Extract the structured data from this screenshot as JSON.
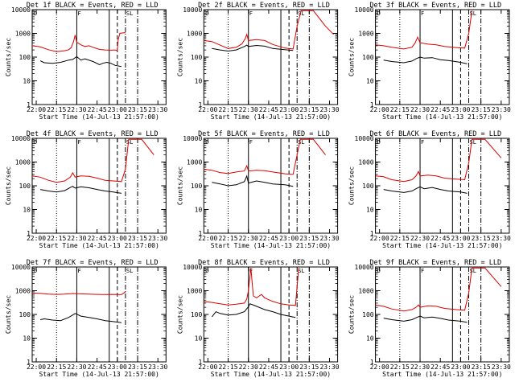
{
  "chart_data": {
    "type": "line",
    "y_scale": "log",
    "ylim": [
      1,
      10000
    ],
    "y_ticks": [
      1,
      10,
      100,
      1000,
      10000
    ],
    "y_tick_labels": [
      "1",
      "10",
      "100",
      "1000",
      "10000"
    ],
    "x_ticks": [
      "22:00",
      "22:15",
      "22:30",
      "22:45",
      "23:00",
      "23:15",
      "23:30"
    ],
    "xlabel": "Start Time (14-Jul-13 21:57:00)",
    "ylabel": "Counts/sec",
    "markers": [
      "D",
      "F",
      "SL"
    ],
    "series_colors": {
      "events": "#000000",
      "lld": "#dd0000"
    },
    "panels": [
      {
        "title": "Det 1f BLACK = Events, RED = LLD",
        "events": [
          [
            22.05,
            70
          ],
          [
            22.1,
            58
          ],
          [
            22.2,
            55
          ],
          [
            22.3,
            60
          ],
          [
            22.4,
            75
          ],
          [
            22.45,
            80
          ],
          [
            22.5,
            105
          ],
          [
            22.55,
            75
          ],
          [
            22.6,
            85
          ],
          [
            22.7,
            65
          ],
          [
            22.78,
            48
          ],
          [
            22.82,
            55
          ],
          [
            22.87,
            60
          ],
          [
            22.92,
            55
          ],
          [
            22.97,
            45
          ],
          [
            23.05,
            40
          ]
        ],
        "lld": [
          [
            21.95,
            300
          ],
          [
            22.05,
            270
          ],
          [
            22.15,
            205
          ],
          [
            22.25,
            170
          ],
          [
            22.35,
            185
          ],
          [
            22.4,
            205
          ],
          [
            22.43,
            250
          ],
          [
            22.46,
            450
          ],
          [
            22.48,
            850
          ],
          [
            22.5,
            420
          ],
          [
            22.55,
            330
          ],
          [
            22.6,
            280
          ],
          [
            22.65,
            300
          ],
          [
            22.7,
            260
          ],
          [
            22.78,
            210
          ],
          [
            22.85,
            200
          ],
          [
            22.92,
            195
          ],
          [
            22.97,
            200
          ],
          [
            23.0,
            190
          ],
          [
            23.01,
            520
          ],
          [
            23.03,
            1000
          ],
          [
            23.1,
            1080
          ]
        ]
      },
      {
        "title": "Det 2f BLACK = Events, RED = LLD",
        "events": [
          [
            22.05,
            230
          ],
          [
            22.15,
            200
          ],
          [
            22.25,
            180
          ],
          [
            22.35,
            200
          ],
          [
            22.45,
            280
          ],
          [
            22.48,
            320
          ],
          [
            22.5,
            280
          ],
          [
            22.6,
            310
          ],
          [
            22.7,
            290
          ],
          [
            22.8,
            230
          ],
          [
            22.92,
            210
          ],
          [
            23.05,
            190
          ]
        ],
        "lld": [
          [
            21.95,
            500
          ],
          [
            22.05,
            450
          ],
          [
            22.15,
            320
          ],
          [
            22.25,
            230
          ],
          [
            22.35,
            260
          ],
          [
            22.42,
            360
          ],
          [
            22.46,
            600
          ],
          [
            22.48,
            900
          ],
          [
            22.5,
            500
          ],
          [
            22.6,
            550
          ],
          [
            22.7,
            500
          ],
          [
            22.8,
            340
          ],
          [
            22.95,
            240
          ],
          [
            23.05,
            220
          ],
          [
            23.1,
            2000
          ],
          [
            23.15,
            9000
          ],
          [
            23.3,
            9000
          ],
          [
            23.45,
            2000
          ],
          [
            23.55,
            900
          ]
        ]
      },
      {
        "title": "Det 3f BLACK = Events, RED = LLD",
        "events": [
          [
            22.05,
            75
          ],
          [
            22.15,
            65
          ],
          [
            22.3,
            58
          ],
          [
            22.4,
            68
          ],
          [
            22.45,
            85
          ],
          [
            22.5,
            100
          ],
          [
            22.55,
            90
          ],
          [
            22.65,
            95
          ],
          [
            22.75,
            78
          ],
          [
            22.85,
            72
          ],
          [
            23.0,
            60
          ],
          [
            23.08,
            52
          ]
        ],
        "lld": [
          [
            21.95,
            330
          ],
          [
            22.05,
            300
          ],
          [
            22.15,
            260
          ],
          [
            22.3,
            220
          ],
          [
            22.4,
            260
          ],
          [
            22.44,
            400
          ],
          [
            22.47,
            700
          ],
          [
            22.5,
            400
          ],
          [
            22.6,
            350
          ],
          [
            22.7,
            330
          ],
          [
            22.8,
            280
          ],
          [
            22.95,
            250
          ],
          [
            23.05,
            240
          ],
          [
            23.1,
            1000
          ],
          [
            23.14,
            9000
          ]
        ]
      },
      {
        "title": "Det 4f BLACK = Events, RED = LLD",
        "events": [
          [
            22.05,
            70
          ],
          [
            22.15,
            60
          ],
          [
            22.25,
            55
          ],
          [
            22.35,
            62
          ],
          [
            22.42,
            85
          ],
          [
            22.45,
            95
          ],
          [
            22.48,
            80
          ],
          [
            22.55,
            90
          ],
          [
            22.65,
            82
          ],
          [
            22.75,
            70
          ],
          [
            22.85,
            60
          ],
          [
            22.95,
            55
          ],
          [
            23.05,
            48
          ]
        ],
        "lld": [
          [
            21.95,
            260
          ],
          [
            22.05,
            230
          ],
          [
            22.15,
            170
          ],
          [
            22.25,
            140
          ],
          [
            22.35,
            160
          ],
          [
            22.42,
            230
          ],
          [
            22.45,
            350
          ],
          [
            22.48,
            230
          ],
          [
            22.55,
            260
          ],
          [
            22.65,
            250
          ],
          [
            22.75,
            210
          ],
          [
            22.85,
            170
          ],
          [
            22.95,
            160
          ],
          [
            23.05,
            150
          ],
          [
            23.1,
            500
          ],
          [
            23.14,
            9000
          ],
          [
            23.3,
            9000
          ],
          [
            23.45,
            2000
          ]
        ]
      },
      {
        "title": "Det 5f BLACK = Events, RED = LLD",
        "events": [
          [
            22.05,
            140
          ],
          [
            22.15,
            120
          ],
          [
            22.25,
            100
          ],
          [
            22.35,
            110
          ],
          [
            22.45,
            150
          ],
          [
            22.48,
            260
          ],
          [
            22.5,
            130
          ],
          [
            22.6,
            160
          ],
          [
            22.7,
            140
          ],
          [
            22.8,
            120
          ],
          [
            22.95,
            110
          ],
          [
            23.05,
            95
          ]
        ],
        "lld": [
          [
            21.95,
            500
          ],
          [
            22.05,
            450
          ],
          [
            22.15,
            360
          ],
          [
            22.25,
            330
          ],
          [
            22.35,
            380
          ],
          [
            22.45,
            420
          ],
          [
            22.48,
            700
          ],
          [
            22.5,
            420
          ],
          [
            22.6,
            450
          ],
          [
            22.7,
            430
          ],
          [
            22.8,
            380
          ],
          [
            22.95,
            320
          ],
          [
            23.05,
            300
          ],
          [
            23.1,
            2000
          ],
          [
            23.14,
            9000
          ],
          [
            23.3,
            9000
          ],
          [
            23.45,
            2000
          ]
        ]
      },
      {
        "title": "Det 6f BLACK = Events, RED = LLD",
        "events": [
          [
            22.05,
            70
          ],
          [
            22.15,
            60
          ],
          [
            22.3,
            52
          ],
          [
            22.4,
            60
          ],
          [
            22.45,
            75
          ],
          [
            22.5,
            90
          ],
          [
            22.55,
            75
          ],
          [
            22.65,
            85
          ],
          [
            22.75,
            70
          ],
          [
            22.85,
            60
          ],
          [
            23.0,
            55
          ],
          [
            23.08,
            48
          ]
        ],
        "lld": [
          [
            21.95,
            260
          ],
          [
            22.05,
            240
          ],
          [
            22.15,
            180
          ],
          [
            22.3,
            150
          ],
          [
            22.4,
            180
          ],
          [
            22.45,
            260
          ],
          [
            22.48,
            400
          ],
          [
            22.5,
            260
          ],
          [
            22.6,
            280
          ],
          [
            22.7,
            260
          ],
          [
            22.8,
            210
          ],
          [
            22.95,
            190
          ],
          [
            23.05,
            180
          ],
          [
            23.1,
            900
          ],
          [
            23.14,
            9000
          ],
          [
            23.3,
            9000
          ],
          [
            23.5,
            1500
          ]
        ]
      },
      {
        "title": "Det 7f BLACK = Events, RED = LLD",
        "events": [
          [
            22.05,
            60
          ],
          [
            22.1,
            65
          ],
          [
            22.2,
            58
          ],
          [
            22.3,
            55
          ],
          [
            22.4,
            75
          ],
          [
            22.45,
            95
          ],
          [
            22.48,
            110
          ],
          [
            22.55,
            85
          ],
          [
            22.65,
            75
          ],
          [
            22.75,
            65
          ],
          [
            22.85,
            55
          ],
          [
            22.95,
            50
          ],
          [
            23.05,
            45
          ]
        ],
        "lld": [
          [
            21.95,
            800
          ],
          [
            22.05,
            780
          ],
          [
            22.15,
            720
          ],
          [
            22.25,
            700
          ],
          [
            22.35,
            720
          ],
          [
            22.45,
            760
          ],
          [
            22.55,
            740
          ],
          [
            22.65,
            720
          ],
          [
            22.75,
            700
          ],
          [
            22.85,
            690
          ],
          [
            22.95,
            700
          ],
          [
            23.05,
            680
          ],
          [
            23.1,
            900
          ]
        ]
      },
      {
        "title": "Det 8f BLACK = Events, RED = LLD",
        "events": [
          [
            22.05,
            80
          ],
          [
            22.1,
            130
          ],
          [
            22.15,
            110
          ],
          [
            22.25,
            95
          ],
          [
            22.35,
            100
          ],
          [
            22.45,
            130
          ],
          [
            22.5,
            210
          ],
          [
            22.52,
            280
          ],
          [
            22.6,
            220
          ],
          [
            22.7,
            160
          ],
          [
            22.8,
            130
          ],
          [
            22.9,
            100
          ],
          [
            23.0,
            85
          ],
          [
            23.08,
            75
          ]
        ],
        "lld": [
          [
            21.95,
            350
          ],
          [
            22.05,
            320
          ],
          [
            22.15,
            280
          ],
          [
            22.25,
            250
          ],
          [
            22.35,
            270
          ],
          [
            22.45,
            300
          ],
          [
            22.48,
            450
          ],
          [
            22.5,
            1000
          ],
          [
            22.53,
            9000
          ],
          [
            22.56,
            600
          ],
          [
            22.6,
            500
          ],
          [
            22.66,
            700
          ],
          [
            22.7,
            500
          ],
          [
            22.8,
            350
          ],
          [
            22.9,
            280
          ],
          [
            23.0,
            250
          ],
          [
            23.08,
            240
          ],
          [
            23.12,
            9000
          ]
        ]
      },
      {
        "title": "Det 9f BLACK = Events, RED = LLD",
        "events": [
          [
            22.05,
            70
          ],
          [
            22.15,
            60
          ],
          [
            22.3,
            52
          ],
          [
            22.4,
            60
          ],
          [
            22.45,
            72
          ],
          [
            22.5,
            85
          ],
          [
            22.55,
            72
          ],
          [
            22.65,
            78
          ],
          [
            22.75,
            68
          ],
          [
            22.85,
            58
          ],
          [
            23.0,
            52
          ],
          [
            23.08,
            46
          ]
        ],
        "lld": [
          [
            21.95,
            250
          ],
          [
            22.05,
            220
          ],
          [
            22.15,
            170
          ],
          [
            22.3,
            140
          ],
          [
            22.4,
            160
          ],
          [
            22.45,
            200
          ],
          [
            22.48,
            250
          ],
          [
            22.5,
            200
          ],
          [
            22.6,
            230
          ],
          [
            22.7,
            220
          ],
          [
            22.8,
            180
          ],
          [
            22.95,
            160
          ],
          [
            23.05,
            150
          ],
          [
            23.1,
            800
          ],
          [
            23.14,
            9000
          ],
          [
            23.3,
            9000
          ],
          [
            23.5,
            1500
          ]
        ]
      }
    ]
  }
}
